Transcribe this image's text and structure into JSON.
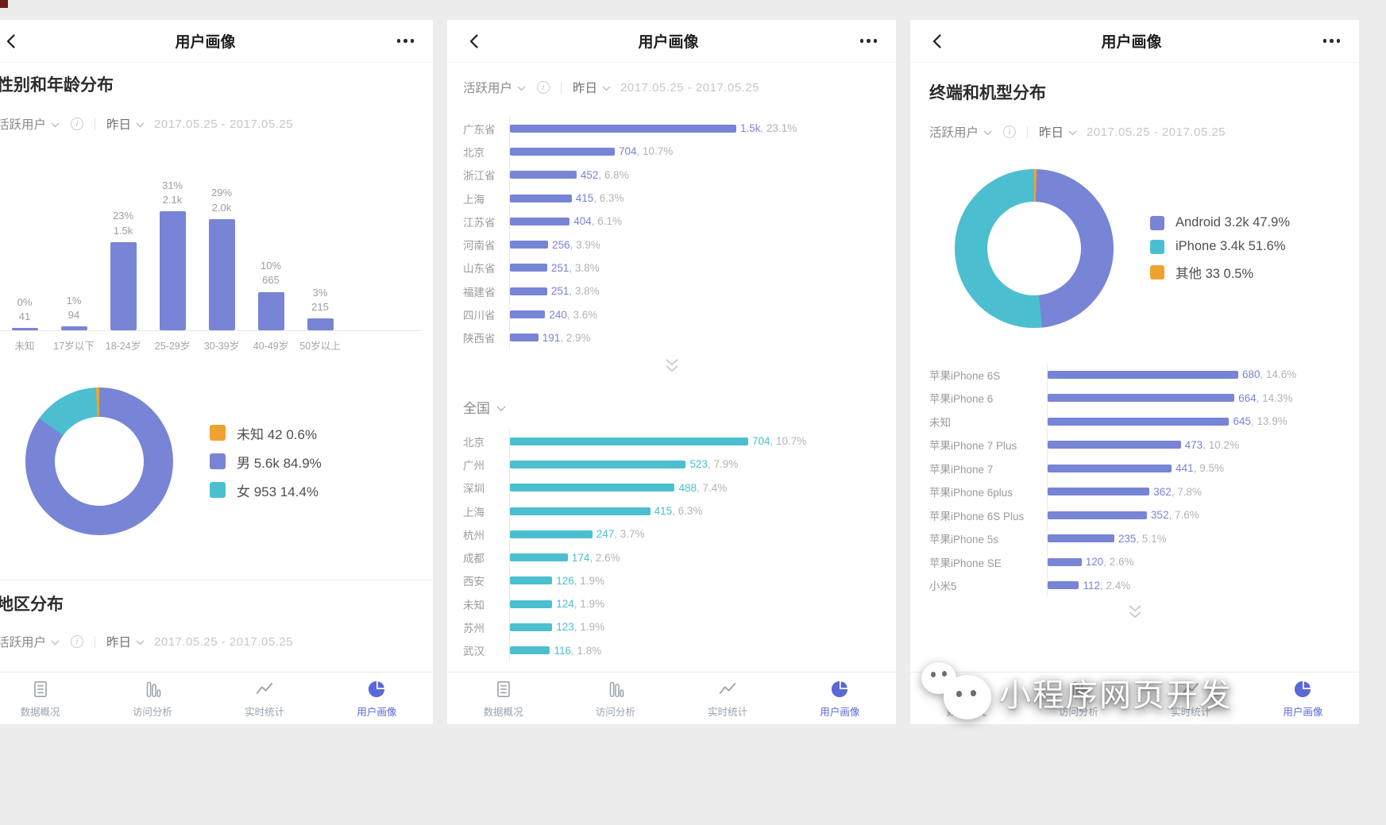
{
  "header": {
    "title": "用户画像"
  },
  "filter": {
    "metric": "活跃用户",
    "period": "昨日",
    "date_range": "2017.05.25 - 2017.05.25"
  },
  "left_panel": {
    "section1": "性别和年龄分布",
    "section2": "地区分布"
  },
  "mid_panel": {
    "region_selector": "全国"
  },
  "right_panel": {
    "section": "终端和机型分布"
  },
  "watermark": {
    "text": "小程序网页开发"
  },
  "colors": {
    "purple": "#7884d6",
    "teal": "#4bbfd0",
    "orange": "#f0a230",
    "active_blue": "#5b68d9"
  },
  "nav": {
    "items": [
      {
        "label": "数据概况",
        "icon": "doc",
        "active": false
      },
      {
        "label": "访问分析",
        "icon": "bars",
        "active": false
      },
      {
        "label": "实时统计",
        "icon": "trend",
        "active": false
      },
      {
        "label": "用户画像",
        "icon": "pie",
        "active": true
      }
    ]
  },
  "chart_data": [
    {
      "id": "age",
      "type": "bar",
      "title": "性别和年龄分布",
      "categories": [
        "未知",
        "17岁以下",
        "18-24岁",
        "25-29岁",
        "30-39岁",
        "40-49岁",
        "50岁以上"
      ],
      "values": [
        41,
        94,
        1500,
        2100,
        2000,
        665,
        215
      ],
      "value_labels": [
        "41",
        "94",
        "1.5k",
        "2.1k",
        "2.0k",
        "665",
        "215"
      ],
      "percent_labels": [
        "0%",
        "1%",
        "23%",
        "31%",
        "29%",
        "10%",
        "3%"
      ],
      "percents": [
        0,
        1,
        23,
        31,
        29,
        10,
        3
      ],
      "color": "#7884d6",
      "grid": false
    },
    {
      "id": "gender",
      "type": "pie",
      "legend_position": "right",
      "draw_order": [
        1,
        2,
        0
      ],
      "slices": [
        {
          "label": "未知",
          "value": 42,
          "pct": 0.6,
          "display": "未知 42 0.6%",
          "color": "#f0a230"
        },
        {
          "label": "男",
          "value": 5600,
          "pct": 84.9,
          "display": "男 5.6k 84.9%",
          "color": "#7884d6"
        },
        {
          "label": "女",
          "value": 953,
          "pct": 14.4,
          "display": "女 953 14.4%",
          "color": "#4bbfd0"
        }
      ]
    },
    {
      "id": "province",
      "type": "bar",
      "orientation": "horizontal",
      "color": "#7884d6",
      "rows": [
        {
          "label": "广东省",
          "value": 1500,
          "value_label": "1.5k",
          "pct": 23.1,
          "pct_label": "23.1%"
        },
        {
          "label": "北京",
          "value": 704,
          "value_label": "704",
          "pct": 10.7,
          "pct_label": "10.7%"
        },
        {
          "label": "浙江省",
          "value": 452,
          "value_label": "452",
          "pct": 6.8,
          "pct_label": "6.8%"
        },
        {
          "label": "上海",
          "value": 415,
          "value_label": "415",
          "pct": 6.3,
          "pct_label": "6.3%"
        },
        {
          "label": "江苏省",
          "value": 404,
          "value_label": "404",
          "pct": 6.1,
          "pct_label": "6.1%"
        },
        {
          "label": "河南省",
          "value": 256,
          "value_label": "256",
          "pct": 3.9,
          "pct_label": "3.9%"
        },
        {
          "label": "山东省",
          "value": 251,
          "value_label": "251",
          "pct": 3.8,
          "pct_label": "3.8%"
        },
        {
          "label": "福建省",
          "value": 251,
          "value_label": "251",
          "pct": 3.8,
          "pct_label": "3.8%"
        },
        {
          "label": "四川省",
          "value": 240,
          "value_label": "240",
          "pct": 3.6,
          "pct_label": "3.6%"
        },
        {
          "label": "陕西省",
          "value": 191,
          "value_label": "191",
          "pct": 2.9,
          "pct_label": "2.9%"
        }
      ]
    },
    {
      "id": "city",
      "type": "bar",
      "orientation": "horizontal",
      "color": "#4bbfd0",
      "rows": [
        {
          "label": "北京",
          "value": 704,
          "value_label": "704",
          "pct": 10.7,
          "pct_label": "10.7%"
        },
        {
          "label": "广州",
          "value": 523,
          "value_label": "523",
          "pct": 7.9,
          "pct_label": "7.9%"
        },
        {
          "label": "深圳",
          "value": 488,
          "value_label": "488",
          "pct": 7.4,
          "pct_label": "7.4%"
        },
        {
          "label": "上海",
          "value": 415,
          "value_label": "415",
          "pct": 6.3,
          "pct_label": "6.3%"
        },
        {
          "label": "杭州",
          "value": 247,
          "value_label": "247",
          "pct": 3.7,
          "pct_label": "3.7%"
        },
        {
          "label": "成都",
          "value": 174,
          "value_label": "174",
          "pct": 2.6,
          "pct_label": "2.6%"
        },
        {
          "label": "西安",
          "value": 126,
          "value_label": "126",
          "pct": 1.9,
          "pct_label": "1.9%"
        },
        {
          "label": "未知",
          "value": 124,
          "value_label": "124",
          "pct": 1.9,
          "pct_label": "1.9%"
        },
        {
          "label": "苏州",
          "value": 123,
          "value_label": "123",
          "pct": 1.9,
          "pct_label": "1.9%"
        },
        {
          "label": "武汉",
          "value": 116,
          "value_label": "116",
          "pct": 1.8,
          "pct_label": "1.8%"
        }
      ]
    },
    {
      "id": "platform",
      "type": "pie",
      "legend_position": "right",
      "draw_order": [
        2,
        0,
        1
      ],
      "slices": [
        {
          "label": "Android",
          "value": 3200,
          "pct": 47.9,
          "display": "Android 3.2k 47.9%",
          "color": "#7884d6"
        },
        {
          "label": "iPhone",
          "value": 3400,
          "pct": 51.6,
          "display": "iPhone 3.4k 51.6%",
          "color": "#4bbfd0"
        },
        {
          "label": "其他",
          "value": 33,
          "pct": 0.5,
          "display": "其他 33 0.5%",
          "color": "#f0a230"
        }
      ]
    },
    {
      "id": "device",
      "type": "bar",
      "orientation": "horizontal",
      "color": "#7884d6",
      "rows": [
        {
          "label": "苹果iPhone 6S",
          "value": 680,
          "value_label": "680",
          "pct": 14.6,
          "pct_label": "14.6%"
        },
        {
          "label": "苹果iPhone 6",
          "value": 664,
          "value_label": "664",
          "pct": 14.3,
          "pct_label": "14.3%"
        },
        {
          "label": "未知",
          "value": 645,
          "value_label": "645",
          "pct": 13.9,
          "pct_label": "13.9%"
        },
        {
          "label": "苹果iPhone 7 Plus",
          "value": 473,
          "value_label": "473",
          "pct": 10.2,
          "pct_label": "10.2%"
        },
        {
          "label": "苹果iPhone 7",
          "value": 441,
          "value_label": "441",
          "pct": 9.5,
          "pct_label": "9.5%"
        },
        {
          "label": "苹果iPhone 6plus",
          "value": 362,
          "value_label": "362",
          "pct": 7.8,
          "pct_label": "7.8%"
        },
        {
          "label": "苹果iPhone 6S Plus",
          "value": 352,
          "value_label": "352",
          "pct": 7.6,
          "pct_label": "7.6%"
        },
        {
          "label": "苹果iPhone 5s",
          "value": 235,
          "value_label": "235",
          "pct": 5.1,
          "pct_label": "5.1%"
        },
        {
          "label": "苹果iPhone SE",
          "value": 120,
          "value_label": "120",
          "pct": 2.6,
          "pct_label": "2.6%"
        },
        {
          "label": "小米5",
          "value": 112,
          "value_label": "112",
          "pct": 2.4,
          "pct_label": "2.4%"
        }
      ]
    }
  ]
}
